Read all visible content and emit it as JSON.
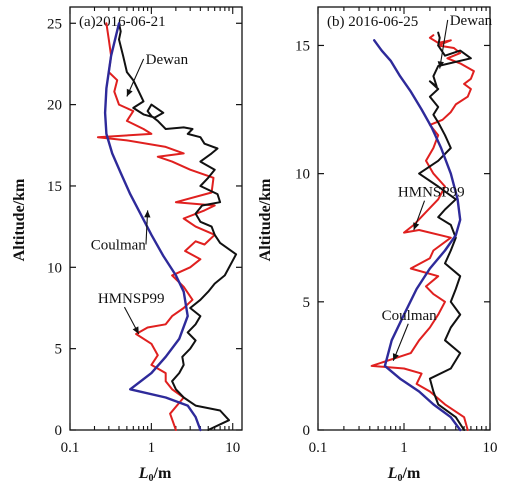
{
  "chart_data": [
    {
      "type": "line",
      "title": "(a)2016-06-21",
      "ylabel": "Altitude/km",
      "xlabel_main": "L",
      "xlabel_sub": "0",
      "xlabel_unit": "/m",
      "xscale": "log",
      "xlim": [
        0.1,
        13
      ],
      "ylim": [
        0,
        26
      ],
      "xticks": [
        {
          "value": 0.1,
          "label": "0.1"
        },
        {
          "value": 1,
          "label": "1"
        },
        {
          "value": 10,
          "label": "10"
        }
      ],
      "yticks": [
        {
          "value": 0,
          "label": "0"
        },
        {
          "value": 5,
          "label": "5"
        },
        {
          "value": 10,
          "label": "10"
        },
        {
          "value": 15,
          "label": "15"
        },
        {
          "value": 20,
          "label": "20"
        },
        {
          "value": 25,
          "label": "25"
        }
      ],
      "annotations": [
        {
          "text": "Dewan",
          "x": 0.85,
          "y": 22.5,
          "arrow_to": [
            0.5,
            20.5
          ]
        },
        {
          "text": "Coulman",
          "x": 0.18,
          "y": 11.1,
          "arrow_to": [
            0.9,
            13.5
          ]
        },
        {
          "text": "HMNSP99",
          "x": 0.22,
          "y": 7.8,
          "arrow_to": [
            0.7,
            5.9
          ]
        }
      ],
      "series": [
        {
          "name": "Dewan",
          "color": "#111111",
          "x": [
            5.0,
            9.0,
            7.0,
            3.5,
            2.5,
            2.0,
            1.8,
            2.2,
            2.5,
            2.4,
            3.0,
            3.5,
            2.8,
            3.5,
            4.0,
            3.0,
            4.0,
            5.0,
            6.0,
            8.0,
            11.0,
            7.0,
            6.0,
            5.5,
            4.0,
            3.5,
            4.2,
            7.0,
            6.5,
            4.0,
            5.0,
            6.0,
            4.0,
            5.5,
            6.5,
            4.5,
            4.0,
            2.8,
            3.2,
            2.5,
            1.5,
            1.2,
            1.0,
            0.9,
            1.0,
            1.4,
            1.1,
            0.8,
            0.6,
            0.8,
            0.7,
            0.6,
            0.5,
            0.45,
            0.4,
            0.42,
            0.4
          ],
          "y": [
            0.0,
            0.6,
            1.2,
            1.5,
            2.0,
            2.5,
            3.0,
            3.5,
            4.0,
            4.5,
            5.0,
            5.5,
            6.0,
            6.5,
            7.0,
            7.5,
            8.0,
            8.5,
            9.0,
            9.5,
            10.8,
            11.5,
            12.0,
            12.5,
            12.8,
            13.3,
            13.8,
            14.0,
            14.5,
            15.0,
            15.5,
            16.0,
            16.5,
            17.0,
            17.3,
            17.6,
            18.0,
            18.2,
            18.5,
            18.6,
            18.5,
            19.0,
            19.3,
            19.6,
            20.0,
            19.5,
            19.2,
            19.4,
            19.8,
            20.2,
            20.8,
            21.5,
            22.0,
            23.0,
            24.0,
            24.5,
            25.0
          ]
        },
        {
          "name": "Coulman",
          "color": "#2e2a9a",
          "x": [
            4.0,
            3.5,
            2.8,
            1.5,
            0.55,
            1.0,
            1.5,
            2.2,
            2.8,
            2.5,
            2.0,
            1.4,
            1.0,
            0.75,
            0.55,
            0.42,
            0.33,
            0.28,
            0.27,
            0.28,
            0.32,
            0.4
          ],
          "y": [
            0.0,
            0.8,
            1.5,
            2.0,
            2.5,
            3.5,
            4.5,
            5.6,
            7.0,
            8.5,
            9.5,
            10.7,
            12.0,
            13.2,
            14.5,
            15.8,
            17.0,
            18.2,
            19.5,
            21.0,
            23.0,
            25.0
          ]
        },
        {
          "name": "HMNSP99",
          "color": "#e0201f",
          "x": [
            2.0,
            1.7,
            2.5,
            1.8,
            1.5,
            1.5,
            1.0,
            1.2,
            1.0,
            0.65,
            0.9,
            1.5,
            1.8,
            2.5,
            3.2,
            2.5,
            1.8,
            3.0,
            4.0,
            2.6,
            3.5,
            4.5,
            6.0,
            3.5,
            2.5,
            4.5,
            6.0,
            2.0,
            5.5,
            5.8,
            3.0,
            1.8,
            1.2,
            2.5,
            1.5,
            0.5,
            0.22,
            1.0,
            0.8,
            0.5,
            0.6,
            0.4,
            0.35,
            0.38,
            0.3,
            0.32,
            0.3,
            0.28
          ],
          "y": [
            0.0,
            1.0,
            2.0,
            2.5,
            3.0,
            3.5,
            4.0,
            4.6,
            5.3,
            5.9,
            6.3,
            6.5,
            7.0,
            7.5,
            8.0,
            8.8,
            9.5,
            10.0,
            10.5,
            11.0,
            11.6,
            11.4,
            12.0,
            12.5,
            13.0,
            13.5,
            13.8,
            14.0,
            14.6,
            15.5,
            16.0,
            16.5,
            16.8,
            17.0,
            17.4,
            17.8,
            18.0,
            18.2,
            18.5,
            19.0,
            19.6,
            20.0,
            20.8,
            21.5,
            22.0,
            23.0,
            24.0,
            25.0
          ]
        }
      ]
    },
    {
      "type": "line",
      "title": "(b) 2016-06-25",
      "ylabel": "Altitude/km",
      "xlabel_main": "L",
      "xlabel_sub": "0",
      "xlabel_unit": "/m",
      "xscale": "log",
      "xlim": [
        0.1,
        10
      ],
      "ylim": [
        0,
        16.5
      ],
      "xticks": [
        {
          "value": 0.1,
          "label": "0.1"
        },
        {
          "value": 1,
          "label": "1"
        },
        {
          "value": 10,
          "label": "10"
        }
      ],
      "yticks": [
        {
          "value": 0,
          "label": "0"
        },
        {
          "value": 5,
          "label": "5"
        },
        {
          "value": 10,
          "label": "10"
        },
        {
          "value": 15,
          "label": "15"
        }
      ],
      "annotations": [
        {
          "text": "Dewan",
          "x": 3.4,
          "y": 15.8,
          "arrow_to": [
            2.6,
            14.1
          ]
        },
        {
          "text": "HMNSP99",
          "x": 0.85,
          "y": 9.1,
          "arrow_to": [
            1.3,
            7.8
          ]
        },
        {
          "text": "Coulman",
          "x": 0.55,
          "y": 4.3,
          "arrow_to": [
            0.75,
            2.7
          ]
        }
      ],
      "series": [
        {
          "name": "Dewan",
          "color": "#111111",
          "x": [
            5.0,
            4.0,
            2.5,
            2.2,
            2.0,
            3.5,
            4.5,
            3.0,
            3.5,
            4.5,
            3.5,
            4.0,
            4.5,
            3.0,
            3.5,
            4.0,
            3.5,
            2.5,
            3.0,
            4.0,
            2.5,
            1.5,
            2.5,
            3.5,
            3.0,
            2.5,
            2.2,
            2.5,
            2.0,
            2.5,
            2.0,
            2.4,
            2.2,
            2.5,
            6.0,
            4.5,
            3.0,
            2.5,
            2.6,
            2.5
          ],
          "y": [
            0.0,
            0.5,
            1.0,
            1.5,
            2.0,
            2.4,
            3.0,
            3.5,
            4.0,
            4.5,
            5.0,
            5.5,
            6.0,
            6.5,
            7.0,
            7.5,
            8.0,
            8.3,
            8.6,
            9.0,
            9.5,
            10.0,
            10.5,
            11.0,
            11.5,
            12.0,
            12.3,
            12.6,
            13.0,
            13.3,
            13.6,
            13.4,
            13.8,
            14.2,
            14.5,
            14.8,
            14.6,
            15.0,
            15.3,
            15.5
          ]
        },
        {
          "name": "Coulman",
          "color": "#2e2a9a",
          "x": [
            4.5,
            3.5,
            2.2,
            1.5,
            0.9,
            0.6,
            0.72,
            1.0,
            1.4,
            2.0,
            3.0,
            4.0,
            4.5,
            4.2,
            3.5,
            2.7,
            2.1,
            1.6,
            1.2,
            0.9,
            0.7,
            0.55,
            0.45
          ],
          "y": [
            0.0,
            0.5,
            1.0,
            1.5,
            2.0,
            2.5,
            3.5,
            4.5,
            5.5,
            6.3,
            7.0,
            7.6,
            8.2,
            9.0,
            10.0,
            11.0,
            11.8,
            12.5,
            13.2,
            13.8,
            14.4,
            14.8,
            15.2
          ]
        },
        {
          "name": "HMNSP99",
          "color": "#e0201f",
          "x": [
            5.5,
            5.0,
            3.0,
            2.0,
            1.4,
            1.6,
            1.0,
            0.42,
            1.2,
            1.5,
            2.0,
            2.5,
            3.0,
            2.2,
            1.8,
            2.5,
            1.2,
            2.0,
            2.2,
            3.5,
            1.5,
            1.0,
            1.3,
            1.8,
            2.5,
            3.0,
            2.2,
            1.8,
            2.2,
            2.5,
            2.0,
            2.8,
            3.5,
            4.0,
            5.5,
            6.0,
            5.0,
            6.0,
            6.5,
            4.5,
            3.2,
            4.5,
            3.8,
            2.5,
            3.5,
            2.5,
            2.0,
            2.2
          ],
          "y": [
            0.0,
            0.5,
            1.0,
            1.5,
            1.8,
            2.2,
            2.4,
            2.5,
            3.0,
            3.5,
            4.0,
            4.5,
            5.0,
            5.3,
            5.6,
            6.0,
            6.3,
            6.7,
            7.0,
            7.5,
            7.8,
            7.7,
            8.0,
            8.5,
            9.0,
            9.5,
            10.0,
            10.5,
            11.0,
            11.5,
            11.9,
            12.1,
            12.4,
            12.7,
            13.0,
            13.3,
            13.5,
            13.7,
            14.0,
            14.3,
            14.5,
            14.7,
            14.9,
            15.0,
            15.2,
            15.1,
            15.3,
            15.4
          ]
        }
      ]
    }
  ]
}
